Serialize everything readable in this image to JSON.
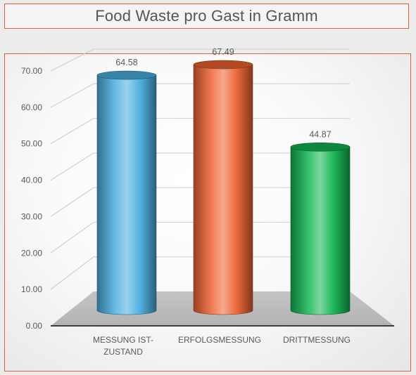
{
  "header": {
    "title": "Food Waste pro Gast in Gramm"
  },
  "chart_data": {
    "type": "bar",
    "title": "Food Waste pro Gast in Gramm",
    "xlabel": "",
    "ylabel": "",
    "ylim": [
      0,
      70
    ],
    "yticks": [
      "0.00",
      "10.00",
      "20.00",
      "30.00",
      "40.00",
      "50.00",
      "60.00",
      "70.00"
    ],
    "categories": [
      [
        "MESSUNG IST-",
        "ZUSTAND"
      ],
      [
        "ERFOLGSMESSUNG"
      ],
      [
        "DRITTMESSUNG"
      ]
    ],
    "values": [
      64.58,
      67.49,
      44.87
    ],
    "value_labels": [
      "64.58",
      "67.49",
      "44.87"
    ],
    "colors": [
      "#4aaee0",
      "#ee6333",
      "#12b552"
    ],
    "grid": true,
    "style": "3d-cylinder"
  }
}
